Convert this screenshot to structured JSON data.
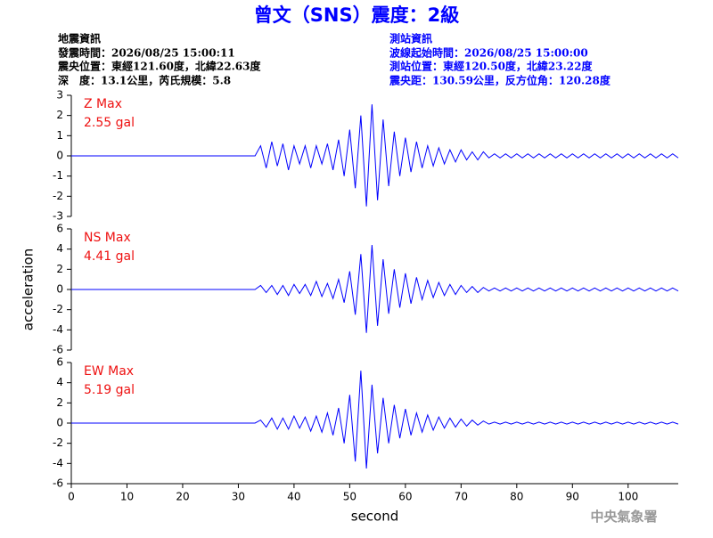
{
  "header": {
    "title": "曾文（SNS）震度：2級",
    "left_info": [
      "地震資訊",
      "發震時間：2026/08/25 15:00:11",
      "震央位置：東經121.60度，北緯22.63度",
      "深　度：13.1公里，芮氏規模：5.8"
    ],
    "right_info": [
      "測站資訊",
      "波線起始時間：2026/08/25 15:00:00",
      "測站位置：東經120.50度，北緯23.22度",
      "震央距：130.59公里，反方位角：120.28度"
    ]
  },
  "footer": "中央氣象署",
  "chart_data": [
    {
      "type": "line",
      "annotations": [
        "Z Max",
        "2.55 gal"
      ],
      "color": "#0000ff",
      "xlim": [
        0,
        109
      ],
      "ylim": [
        -3,
        3
      ],
      "yticks": [
        -3,
        -2,
        -1,
        0,
        1,
        2,
        3
      ],
      "x": [
        0,
        1,
        2,
        3,
        4,
        5,
        6,
        7,
        8,
        9,
        10,
        11,
        12,
        13,
        14,
        15,
        16,
        17,
        18,
        19,
        20,
        21,
        22,
        23,
        24,
        25,
        26,
        27,
        28,
        29,
        30,
        31,
        32,
        33,
        34,
        35,
        36,
        37,
        38,
        39,
        40,
        41,
        42,
        43,
        44,
        45,
        46,
        47,
        48,
        49,
        50,
        51,
        52,
        53,
        54,
        55,
        56,
        57,
        58,
        59,
        60,
        61,
        62,
        63,
        64,
        65,
        66,
        67,
        68,
        69,
        70,
        71,
        72,
        73,
        74,
        75,
        76,
        77,
        78,
        79,
        80,
        81,
        82,
        83,
        84,
        85,
        86,
        87,
        88,
        89,
        90,
        91,
        92,
        93,
        94,
        95,
        96,
        97,
        98,
        99,
        100,
        101,
        102,
        103,
        104,
        105,
        106,
        107,
        108,
        109
      ],
      "values": [
        0,
        0,
        0,
        0,
        0,
        0,
        0,
        0,
        0,
        0,
        0,
        0,
        0,
        0,
        0,
        0,
        0,
        0,
        0,
        0,
        0,
        0,
        0,
        0,
        0,
        0,
        0,
        0,
        0,
        0,
        0,
        0,
        0,
        0,
        0.5,
        -0.6,
        0.7,
        -0.5,
        0.6,
        -0.7,
        0.5,
        -0.4,
        0.5,
        -0.6,
        0.5,
        -0.4,
        0.6,
        -0.7,
        0.8,
        -1.0,
        1.3,
        -1.6,
        2.0,
        -2.5,
        2.55,
        -2.2,
        1.8,
        -1.5,
        1.2,
        -1.0,
        0.9,
        -0.8,
        0.7,
        -0.6,
        0.5,
        -0.5,
        0.4,
        -0.4,
        0.3,
        -0.3,
        0.3,
        -0.2,
        0.2,
        -0.2,
        0.2,
        -0.1,
        0.1,
        -0.1,
        0.1,
        -0.1,
        0.1,
        -0.1,
        0.1,
        -0.1,
        0.1,
        -0.1,
        0.1,
        -0.1,
        0.1,
        -0.1,
        0.1,
        -0.1,
        0.1,
        -0.1,
        0.1,
        -0.1,
        0.1,
        -0.1,
        0.1,
        -0.1,
        0.1,
        -0.1,
        0.1,
        -0.1,
        0.1,
        -0.1,
        0.1,
        -0.1,
        0.1,
        -0.1
      ]
    },
    {
      "type": "line",
      "annotations": [
        "NS Max",
        "4.41 gal"
      ],
      "color": "#0000ff",
      "ylabel": "acceleration",
      "xlim": [
        0,
        109
      ],
      "ylim": [
        -6,
        6
      ],
      "yticks": [
        -6,
        -4,
        -2,
        0,
        2,
        4,
        6
      ],
      "x": [
        0,
        1,
        2,
        3,
        4,
        5,
        6,
        7,
        8,
        9,
        10,
        11,
        12,
        13,
        14,
        15,
        16,
        17,
        18,
        19,
        20,
        21,
        22,
        23,
        24,
        25,
        26,
        27,
        28,
        29,
        30,
        31,
        32,
        33,
        34,
        35,
        36,
        37,
        38,
        39,
        40,
        41,
        42,
        43,
        44,
        45,
        46,
        47,
        48,
        49,
        50,
        51,
        52,
        53,
        54,
        55,
        56,
        57,
        58,
        59,
        60,
        61,
        62,
        63,
        64,
        65,
        66,
        67,
        68,
        69,
        70,
        71,
        72,
        73,
        74,
        75,
        76,
        77,
        78,
        79,
        80,
        81,
        82,
        83,
        84,
        85,
        86,
        87,
        88,
        89,
        90,
        91,
        92,
        93,
        94,
        95,
        96,
        97,
        98,
        99,
        100,
        101,
        102,
        103,
        104,
        105,
        106,
        107,
        108,
        109
      ],
      "values": [
        0,
        0,
        0,
        0,
        0,
        0,
        0,
        0,
        0,
        0,
        0,
        0,
        0,
        0,
        0,
        0,
        0,
        0,
        0,
        0,
        0,
        0,
        0,
        0,
        0,
        0,
        0,
        0,
        0,
        0,
        0,
        0,
        0,
        0,
        0.4,
        -0.3,
        0.4,
        -0.5,
        0.4,
        -0.6,
        0.5,
        -0.4,
        0.5,
        -0.6,
        0.8,
        -0.7,
        0.6,
        -0.9,
        1.0,
        -1.3,
        1.8,
        -2.5,
        3.5,
        -4.3,
        4.41,
        -3.6,
        3.0,
        -2.4,
        2.0,
        -1.8,
        1.6,
        -1.4,
        1.2,
        -1.0,
        0.9,
        -0.8,
        0.7,
        -0.6,
        0.5,
        -0.5,
        0.4,
        -0.3,
        0.3,
        -0.3,
        0.2,
        -0.15,
        0.15,
        -0.15,
        0.15,
        -0.15,
        0.15,
        -0.15,
        0.15,
        -0.15,
        0.15,
        -0.15,
        0.15,
        -0.15,
        0.15,
        -0.15,
        0.15,
        -0.15,
        0.15,
        -0.15,
        0.15,
        -0.15,
        0.15,
        -0.15,
        0.15,
        -0.15,
        0.15,
        -0.15,
        0.15,
        -0.15,
        0.15,
        -0.15,
        0.15,
        -0.15,
        0.15,
        -0.15
      ]
    },
    {
      "type": "line",
      "annotations": [
        "EW Max",
        "5.19 gal"
      ],
      "color": "#0000ff",
      "xlabel": "second",
      "xlim": [
        0,
        109
      ],
      "ylim": [
        -6,
        6
      ],
      "yticks": [
        -6,
        -4,
        -2,
        0,
        2,
        4,
        6
      ],
      "xticks": [
        0,
        10,
        20,
        30,
        40,
        50,
        60,
        70,
        80,
        90,
        100
      ],
      "x": [
        0,
        1,
        2,
        3,
        4,
        5,
        6,
        7,
        8,
        9,
        10,
        11,
        12,
        13,
        14,
        15,
        16,
        17,
        18,
        19,
        20,
        21,
        22,
        23,
        24,
        25,
        26,
        27,
        28,
        29,
        30,
        31,
        32,
        33,
        34,
        35,
        36,
        37,
        38,
        39,
        40,
        41,
        42,
        43,
        44,
        45,
        46,
        47,
        48,
        49,
        50,
        51,
        52,
        53,
        54,
        55,
        56,
        57,
        58,
        59,
        60,
        61,
        62,
        63,
        64,
        65,
        66,
        67,
        68,
        69,
        70,
        71,
        72,
        73,
        74,
        75,
        76,
        77,
        78,
        79,
        80,
        81,
        82,
        83,
        84,
        85,
        86,
        87,
        88,
        89,
        90,
        91,
        92,
        93,
        94,
        95,
        96,
        97,
        98,
        99,
        100,
        101,
        102,
        103,
        104,
        105,
        106,
        107,
        108,
        109
      ],
      "values": [
        0,
        0,
        0,
        0,
        0,
        0,
        0,
        0,
        0,
        0,
        0,
        0,
        0,
        0,
        0,
        0,
        0,
        0,
        0,
        0,
        0,
        0,
        0,
        0,
        0,
        0,
        0,
        0,
        0,
        0,
        0,
        0,
        0,
        0,
        0.3,
        -0.4,
        0.5,
        -0.6,
        0.5,
        -0.6,
        0.7,
        -0.5,
        0.6,
        -0.8,
        0.7,
        -0.9,
        1.0,
        -1.2,
        1.5,
        -2.0,
        2.8,
        -3.8,
        5.19,
        -4.5,
        3.8,
        -3.0,
        2.5,
        -2.0,
        1.8,
        -1.5,
        1.4,
        -1.2,
        1.0,
        -0.9,
        0.8,
        -0.7,
        0.6,
        -0.5,
        0.5,
        -0.4,
        0.4,
        -0.3,
        0.3,
        -0.2,
        0.2,
        -0.1,
        0.1,
        -0.1,
        0.1,
        -0.1,
        0.1,
        -0.1,
        0.1,
        -0.1,
        0.1,
        -0.1,
        0.1,
        -0.1,
        0.1,
        -0.1,
        0.1,
        -0.1,
        0.1,
        -0.1,
        0.1,
        -0.1,
        0.1,
        -0.1,
        0.1,
        -0.1,
        0.1,
        -0.1,
        0.1,
        -0.1,
        0.1,
        -0.1,
        0.1,
        -0.1,
        0.1,
        -0.1
      ]
    }
  ]
}
